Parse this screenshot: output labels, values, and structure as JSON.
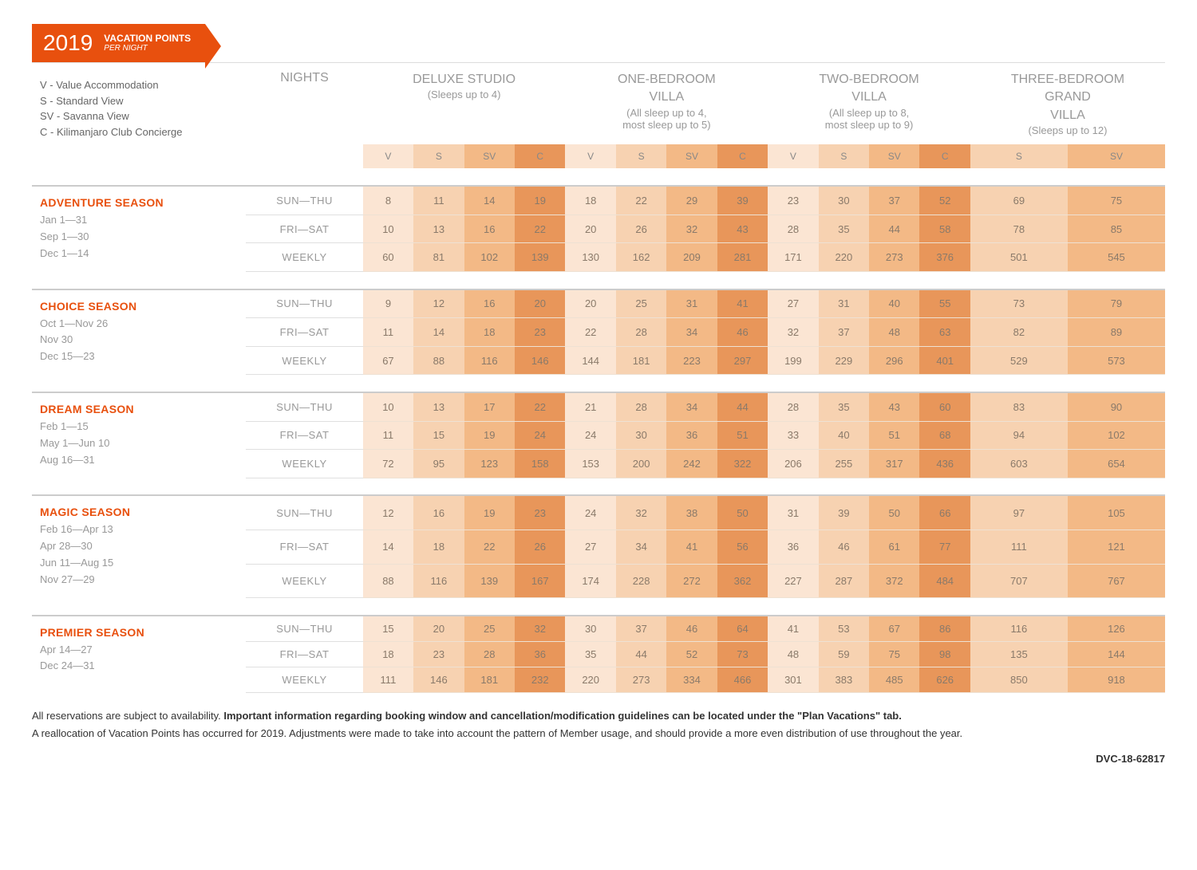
{
  "header": {
    "year": "2019",
    "title": "VACATION POINTS",
    "subtitle": "PER NIGHT"
  },
  "legend": [
    "V - Value Accommodation",
    "S - Standard View",
    "SV - Savanna View",
    "C - Kilimanjaro Club Concierge"
  ],
  "nightsLabel": "NIGHTS",
  "roomTypes": [
    {
      "title": "DELUXE STUDIO",
      "sub": "(Sleeps up to 4)",
      "cols": [
        "V",
        "S",
        "SV",
        "C"
      ],
      "shades": [
        "c0",
        "c1",
        "c2",
        "c3"
      ]
    },
    {
      "title": "ONE-BEDROOM VILLA",
      "sub": "(All sleep up to 4, most sleep up to 5)",
      "cols": [
        "V",
        "S",
        "SV",
        "C"
      ],
      "shades": [
        "c0",
        "c1",
        "c2",
        "c3"
      ]
    },
    {
      "title": "TWO-BEDROOM VILLA",
      "sub": "(All sleep up to 8, most sleep up to 9)",
      "cols": [
        "V",
        "S",
        "SV",
        "C"
      ],
      "shades": [
        "c0",
        "c1",
        "c2",
        "c3"
      ]
    },
    {
      "title": "THREE-BEDROOM GRAND VILLA",
      "sub": "(Sleeps up to 12)",
      "cols": [
        "S",
        "SV"
      ],
      "shades": [
        "c1",
        "c2"
      ]
    }
  ],
  "nightRows": [
    "SUN—THU",
    "FRI—SAT",
    "WEEKLY"
  ],
  "seasons": [
    {
      "name": "ADVENTURE SEASON",
      "dates": [
        "Jan 1—31",
        "Sep 1—30",
        "Dec 1—14"
      ],
      "rows": [
        [
          8,
          11,
          14,
          19,
          18,
          22,
          29,
          39,
          23,
          30,
          37,
          52,
          69,
          75
        ],
        [
          10,
          13,
          16,
          22,
          20,
          26,
          32,
          43,
          28,
          35,
          44,
          58,
          78,
          85
        ],
        [
          60,
          81,
          102,
          139,
          130,
          162,
          209,
          281,
          171,
          220,
          273,
          376,
          501,
          545
        ]
      ]
    },
    {
      "name": "CHOICE SEASON",
      "dates": [
        "Oct 1—Nov 26",
        "Nov 30",
        "Dec 15—23"
      ],
      "rows": [
        [
          9,
          12,
          16,
          20,
          20,
          25,
          31,
          41,
          27,
          31,
          40,
          55,
          73,
          79
        ],
        [
          11,
          14,
          18,
          23,
          22,
          28,
          34,
          46,
          32,
          37,
          48,
          63,
          82,
          89
        ],
        [
          67,
          88,
          116,
          146,
          144,
          181,
          223,
          297,
          199,
          229,
          296,
          401,
          529,
          573
        ]
      ]
    },
    {
      "name": "DREAM SEASON",
      "dates": [
        "Feb 1—15",
        "May 1—Jun 10",
        "Aug 16—31"
      ],
      "rows": [
        [
          10,
          13,
          17,
          22,
          21,
          28,
          34,
          44,
          28,
          35,
          43,
          60,
          83,
          90
        ],
        [
          11,
          15,
          19,
          24,
          24,
          30,
          36,
          51,
          33,
          40,
          51,
          68,
          94,
          102
        ],
        [
          72,
          95,
          123,
          158,
          153,
          200,
          242,
          322,
          206,
          255,
          317,
          436,
          603,
          654
        ]
      ]
    },
    {
      "name": "MAGIC SEASON",
      "dates": [
        "Feb 16—Apr 13",
        "Apr 28—30",
        "Jun 11—Aug 15",
        "Nov 27—29"
      ],
      "rows": [
        [
          12,
          16,
          19,
          23,
          24,
          32,
          38,
          50,
          31,
          39,
          50,
          66,
          97,
          105
        ],
        [
          14,
          18,
          22,
          26,
          27,
          34,
          41,
          56,
          36,
          46,
          61,
          77,
          111,
          121
        ],
        [
          88,
          116,
          139,
          167,
          174,
          228,
          272,
          362,
          227,
          287,
          372,
          484,
          707,
          767
        ]
      ]
    },
    {
      "name": "PREMIER SEASON",
      "dates": [
        "Apr 14—27",
        "Dec 24—31"
      ],
      "rows": [
        [
          15,
          20,
          25,
          32,
          30,
          37,
          46,
          64,
          41,
          53,
          67,
          86,
          116,
          126
        ],
        [
          18,
          23,
          28,
          36,
          35,
          44,
          52,
          73,
          48,
          59,
          75,
          98,
          135,
          144
        ],
        [
          111,
          146,
          181,
          232,
          220,
          273,
          334,
          466,
          301,
          383,
          485,
          626,
          850,
          918
        ]
      ]
    }
  ],
  "footer1a": "All reservations are subject to availability. ",
  "footer1b": "Important information regarding booking window and cancellation/modification guidelines can be located under the \"Plan Vacations\" tab.",
  "footer2": "A reallocation of Vacation Points has occurred for 2019. Adjustments were made to take into account the pattern of Member usage, and should provide a more even distribution of use throughout the year.",
  "docid": "DVC-18-62817"
}
